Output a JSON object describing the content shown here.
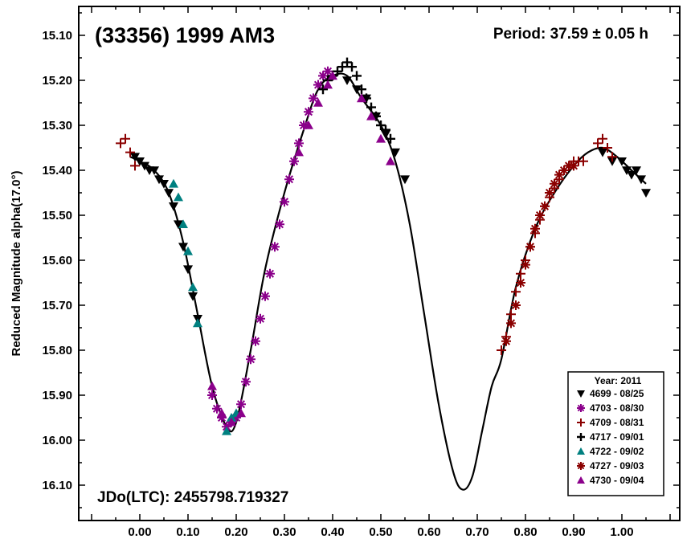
{
  "chart_data": {
    "type": "scatter",
    "title": "(33356) 1999 AM3",
    "period_label": "Period: 37.59 ± 0.05 h",
    "jd_label": "JDo(LTC): 2455798.719327",
    "xlabel": "",
    "ylabel": "Reduced Magnitude alpha(17.0°)",
    "xlim": [
      -0.1,
      1.1
    ],
    "ylim": [
      16.15,
      15.03
    ],
    "x_ticks": [
      "0.00",
      "0.10",
      "0.20",
      "0.30",
      "0.40",
      "0.50",
      "0.60",
      "0.70",
      "0.80",
      "0.90",
      "1.00"
    ],
    "y_ticks": [
      "15.10",
      "15.20",
      "15.30",
      "15.40",
      "15.50",
      "15.60",
      "15.70",
      "15.80",
      "15.90",
      "16.00",
      "16.10"
    ],
    "legend_title": "Year: 2011",
    "legend_position": "bottom-right",
    "fit_curve": {
      "x": [
        -0.02,
        0.0,
        0.03,
        0.06,
        0.09,
        0.12,
        0.15,
        0.18,
        0.2,
        0.23,
        0.26,
        0.3,
        0.34,
        0.37,
        0.4,
        0.43,
        0.46,
        0.5,
        0.53,
        0.56,
        0.59,
        0.62,
        0.65,
        0.67,
        0.69,
        0.71,
        0.73,
        0.75,
        0.78,
        0.82,
        0.86,
        0.9,
        0.93,
        0.96,
        0.99,
        1.02,
        1.05
      ],
      "y": [
        15.37,
        15.38,
        15.4,
        15.45,
        15.56,
        15.72,
        15.88,
        15.97,
        15.96,
        15.8,
        15.62,
        15.45,
        15.31,
        15.22,
        15.19,
        15.19,
        15.24,
        15.3,
        15.38,
        15.52,
        15.72,
        15.92,
        16.07,
        16.11,
        16.08,
        15.98,
        15.88,
        15.82,
        15.66,
        15.53,
        15.45,
        15.39,
        15.36,
        15.35,
        15.37,
        15.4,
        15.43
      ]
    },
    "series": [
      {
        "name": "4699 - 08/25",
        "marker": "triangle-down",
        "color": "#000000",
        "x": [
          -0.01,
          0.0,
          0.01,
          0.02,
          0.03,
          0.04,
          0.05,
          0.06,
          0.07,
          0.08,
          0.09,
          0.1,
          0.11,
          0.12,
          0.43,
          0.45,
          0.47,
          0.49,
          0.51,
          0.53,
          0.55,
          0.96,
          0.98,
          1.0,
          1.01,
          1.02,
          1.03,
          1.04,
          1.05
        ],
        "y": [
          15.37,
          15.38,
          15.39,
          15.4,
          15.4,
          15.42,
          15.43,
          15.45,
          15.48,
          15.52,
          15.57,
          15.62,
          15.68,
          15.73,
          15.2,
          15.22,
          15.24,
          15.28,
          15.32,
          15.36,
          15.42,
          15.36,
          15.38,
          15.38,
          15.4,
          15.41,
          15.4,
          15.42,
          15.45
        ]
      },
      {
        "name": "4703 - 08/30",
        "marker": "asterisk",
        "color": "#8b008b",
        "x": [
          0.15,
          0.16,
          0.17,
          0.18,
          0.19,
          0.2,
          0.21,
          0.22,
          0.23,
          0.24,
          0.25,
          0.26,
          0.27,
          0.28,
          0.29,
          0.3,
          0.31,
          0.32,
          0.33,
          0.34,
          0.35,
          0.36,
          0.37,
          0.38,
          0.39
        ],
        "y": [
          15.9,
          15.93,
          15.95,
          15.97,
          15.96,
          15.95,
          15.92,
          15.87,
          15.82,
          15.78,
          15.73,
          15.68,
          15.63,
          15.57,
          15.52,
          15.47,
          15.42,
          15.38,
          15.34,
          15.3,
          15.27,
          15.24,
          15.21,
          15.19,
          15.18
        ]
      },
      {
        "name": "4709 - 08/31",
        "marker": "plus",
        "color": "#8b0000",
        "x": [
          -0.04,
          -0.03,
          -0.02,
          -0.01,
          0.75,
          0.76,
          0.77,
          0.78,
          0.79,
          0.8,
          0.81,
          0.82,
          0.83,
          0.84,
          0.85,
          0.86,
          0.87,
          0.88,
          0.89,
          0.9,
          0.91,
          0.92,
          0.95,
          0.96,
          0.97,
          0.98
        ],
        "y": [
          15.34,
          15.33,
          15.36,
          15.39,
          15.8,
          15.77,
          15.72,
          15.67,
          15.63,
          15.6,
          15.57,
          15.54,
          15.51,
          15.48,
          15.46,
          15.44,
          15.42,
          15.4,
          15.39,
          15.38,
          15.38,
          15.38,
          15.34,
          15.33,
          15.35,
          15.37
        ]
      },
      {
        "name": "4717 - 09/01",
        "marker": "cross",
        "color": "#000000",
        "x": [
          0.38,
          0.39,
          0.4,
          0.41,
          0.42,
          0.43,
          0.44,
          0.45,
          0.46,
          0.47,
          0.48,
          0.49,
          0.5,
          0.51,
          0.52
        ],
        "y": [
          15.22,
          15.2,
          15.19,
          15.18,
          15.17,
          15.16,
          15.17,
          15.19,
          15.22,
          15.24,
          15.26,
          15.28,
          15.3,
          15.31,
          15.33
        ]
      },
      {
        "name": "4722 - 09/02",
        "marker": "triangle-up",
        "color": "#008080",
        "x": [
          0.07,
          0.08,
          0.09,
          0.1,
          0.11,
          0.12,
          0.18,
          0.19,
          0.2
        ],
        "y": [
          15.43,
          15.46,
          15.52,
          15.58,
          15.66,
          15.74,
          15.98,
          15.95,
          15.94
        ]
      },
      {
        "name": "4727 - 09/03",
        "marker": "star",
        "color": "#8b0000",
        "x": [
          0.76,
          0.77,
          0.78,
          0.79,
          0.8,
          0.81,
          0.82,
          0.83,
          0.84,
          0.85,
          0.86,
          0.87,
          0.88,
          0.89,
          0.9
        ],
        "y": [
          15.78,
          15.74,
          15.7,
          15.65,
          15.61,
          15.57,
          15.53,
          15.5,
          15.48,
          15.45,
          15.43,
          15.41,
          15.4,
          15.39,
          15.39
        ]
      },
      {
        "name": "4730 - 09/04",
        "marker": "triangle-up",
        "color": "#8b008b",
        "x": [
          0.15,
          0.17,
          0.19,
          0.21,
          0.33,
          0.35,
          0.37,
          0.39,
          0.4,
          0.46,
          0.48,
          0.5,
          0.52
        ],
        "y": [
          15.88,
          15.94,
          15.96,
          15.94,
          15.36,
          15.3,
          15.25,
          15.21,
          15.19,
          15.24,
          15.28,
          15.33,
          15.38
        ]
      }
    ]
  }
}
